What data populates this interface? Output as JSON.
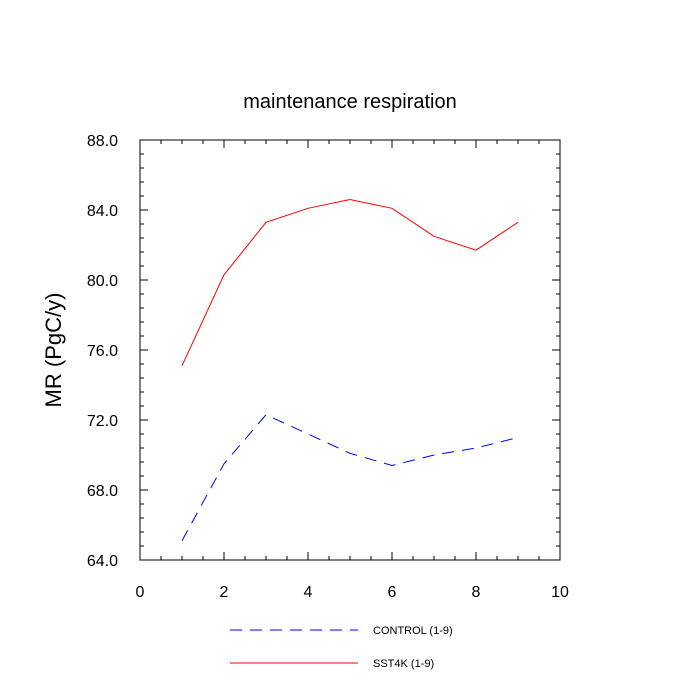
{
  "chart_data": {
    "type": "line",
    "title": "maintenance respiration",
    "xlabel": "",
    "ylabel": "MR  (PgC/y)",
    "xlim": [
      0,
      10
    ],
    "ylim": [
      64,
      88
    ],
    "x_ticks": [
      0,
      2,
      4,
      6,
      8,
      10
    ],
    "x_tick_labels": [
      "0",
      "2",
      "4",
      "6",
      "8",
      "10"
    ],
    "y_ticks": [
      64,
      68,
      72,
      76,
      80,
      84,
      88
    ],
    "y_tick_labels": [
      "64.0",
      "68.0",
      "72.0",
      "76.0",
      "80.0",
      "84.0",
      "88.0"
    ],
    "grid": false,
    "legend_position": "bottom",
    "series": [
      {
        "name": "CONTROL (1-9)",
        "color": "#0000ff",
        "dash": "dashed",
        "x": [
          1,
          2,
          3,
          4,
          5,
          6,
          7,
          8,
          9
        ],
        "values": [
          65.1,
          69.5,
          72.3,
          71.2,
          70.1,
          69.4,
          70.0,
          70.4,
          71.0
        ]
      },
      {
        "name": "SST4K (1-9)",
        "color": "#ff0000",
        "dash": "solid",
        "x": [
          1,
          2,
          3,
          4,
          5,
          6,
          7,
          8,
          9
        ],
        "values": [
          75.1,
          80.3,
          83.3,
          84.1,
          84.6,
          84.1,
          82.5,
          81.7,
          83.3
        ]
      }
    ]
  }
}
